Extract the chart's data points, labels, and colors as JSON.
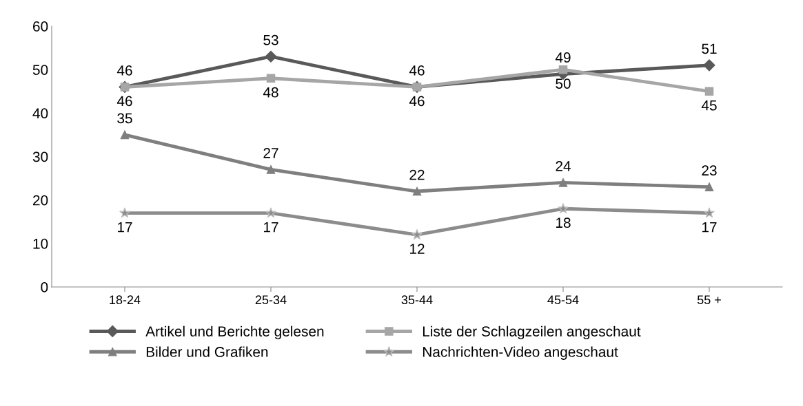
{
  "chart_data": {
    "type": "line",
    "categories": [
      "18-24",
      "25-34",
      "35-44",
      "45-54",
      "55 +"
    ],
    "series": [
      {
        "name": "Artikel und Berichte gelesen",
        "color": "#595959",
        "marker": "diamond",
        "values": [
          46,
          53,
          46,
          49,
          51
        ]
      },
      {
        "name": "Liste der Schlagzeilen angeschaut",
        "color": "#a6a6a6",
        "marker": "square",
        "values": [
          46,
          48,
          46,
          50,
          45
        ]
      },
      {
        "name": "Bilder und Grafiken",
        "color": "#7f7f7f",
        "marker": "triangle",
        "values": [
          35,
          27,
          22,
          24,
          23
        ]
      },
      {
        "name": "Nachrichten-Video angeschaut",
        "color": "#8c8c8c",
        "marker": "star",
        "values": [
          17,
          17,
          12,
          18,
          17
        ]
      }
    ],
    "ylim": [
      0,
      60
    ],
    "yticks": [
      0,
      10,
      20,
      30,
      40,
      50,
      60
    ],
    "grid": false,
    "legend": "bottom",
    "data_labels": true
  }
}
